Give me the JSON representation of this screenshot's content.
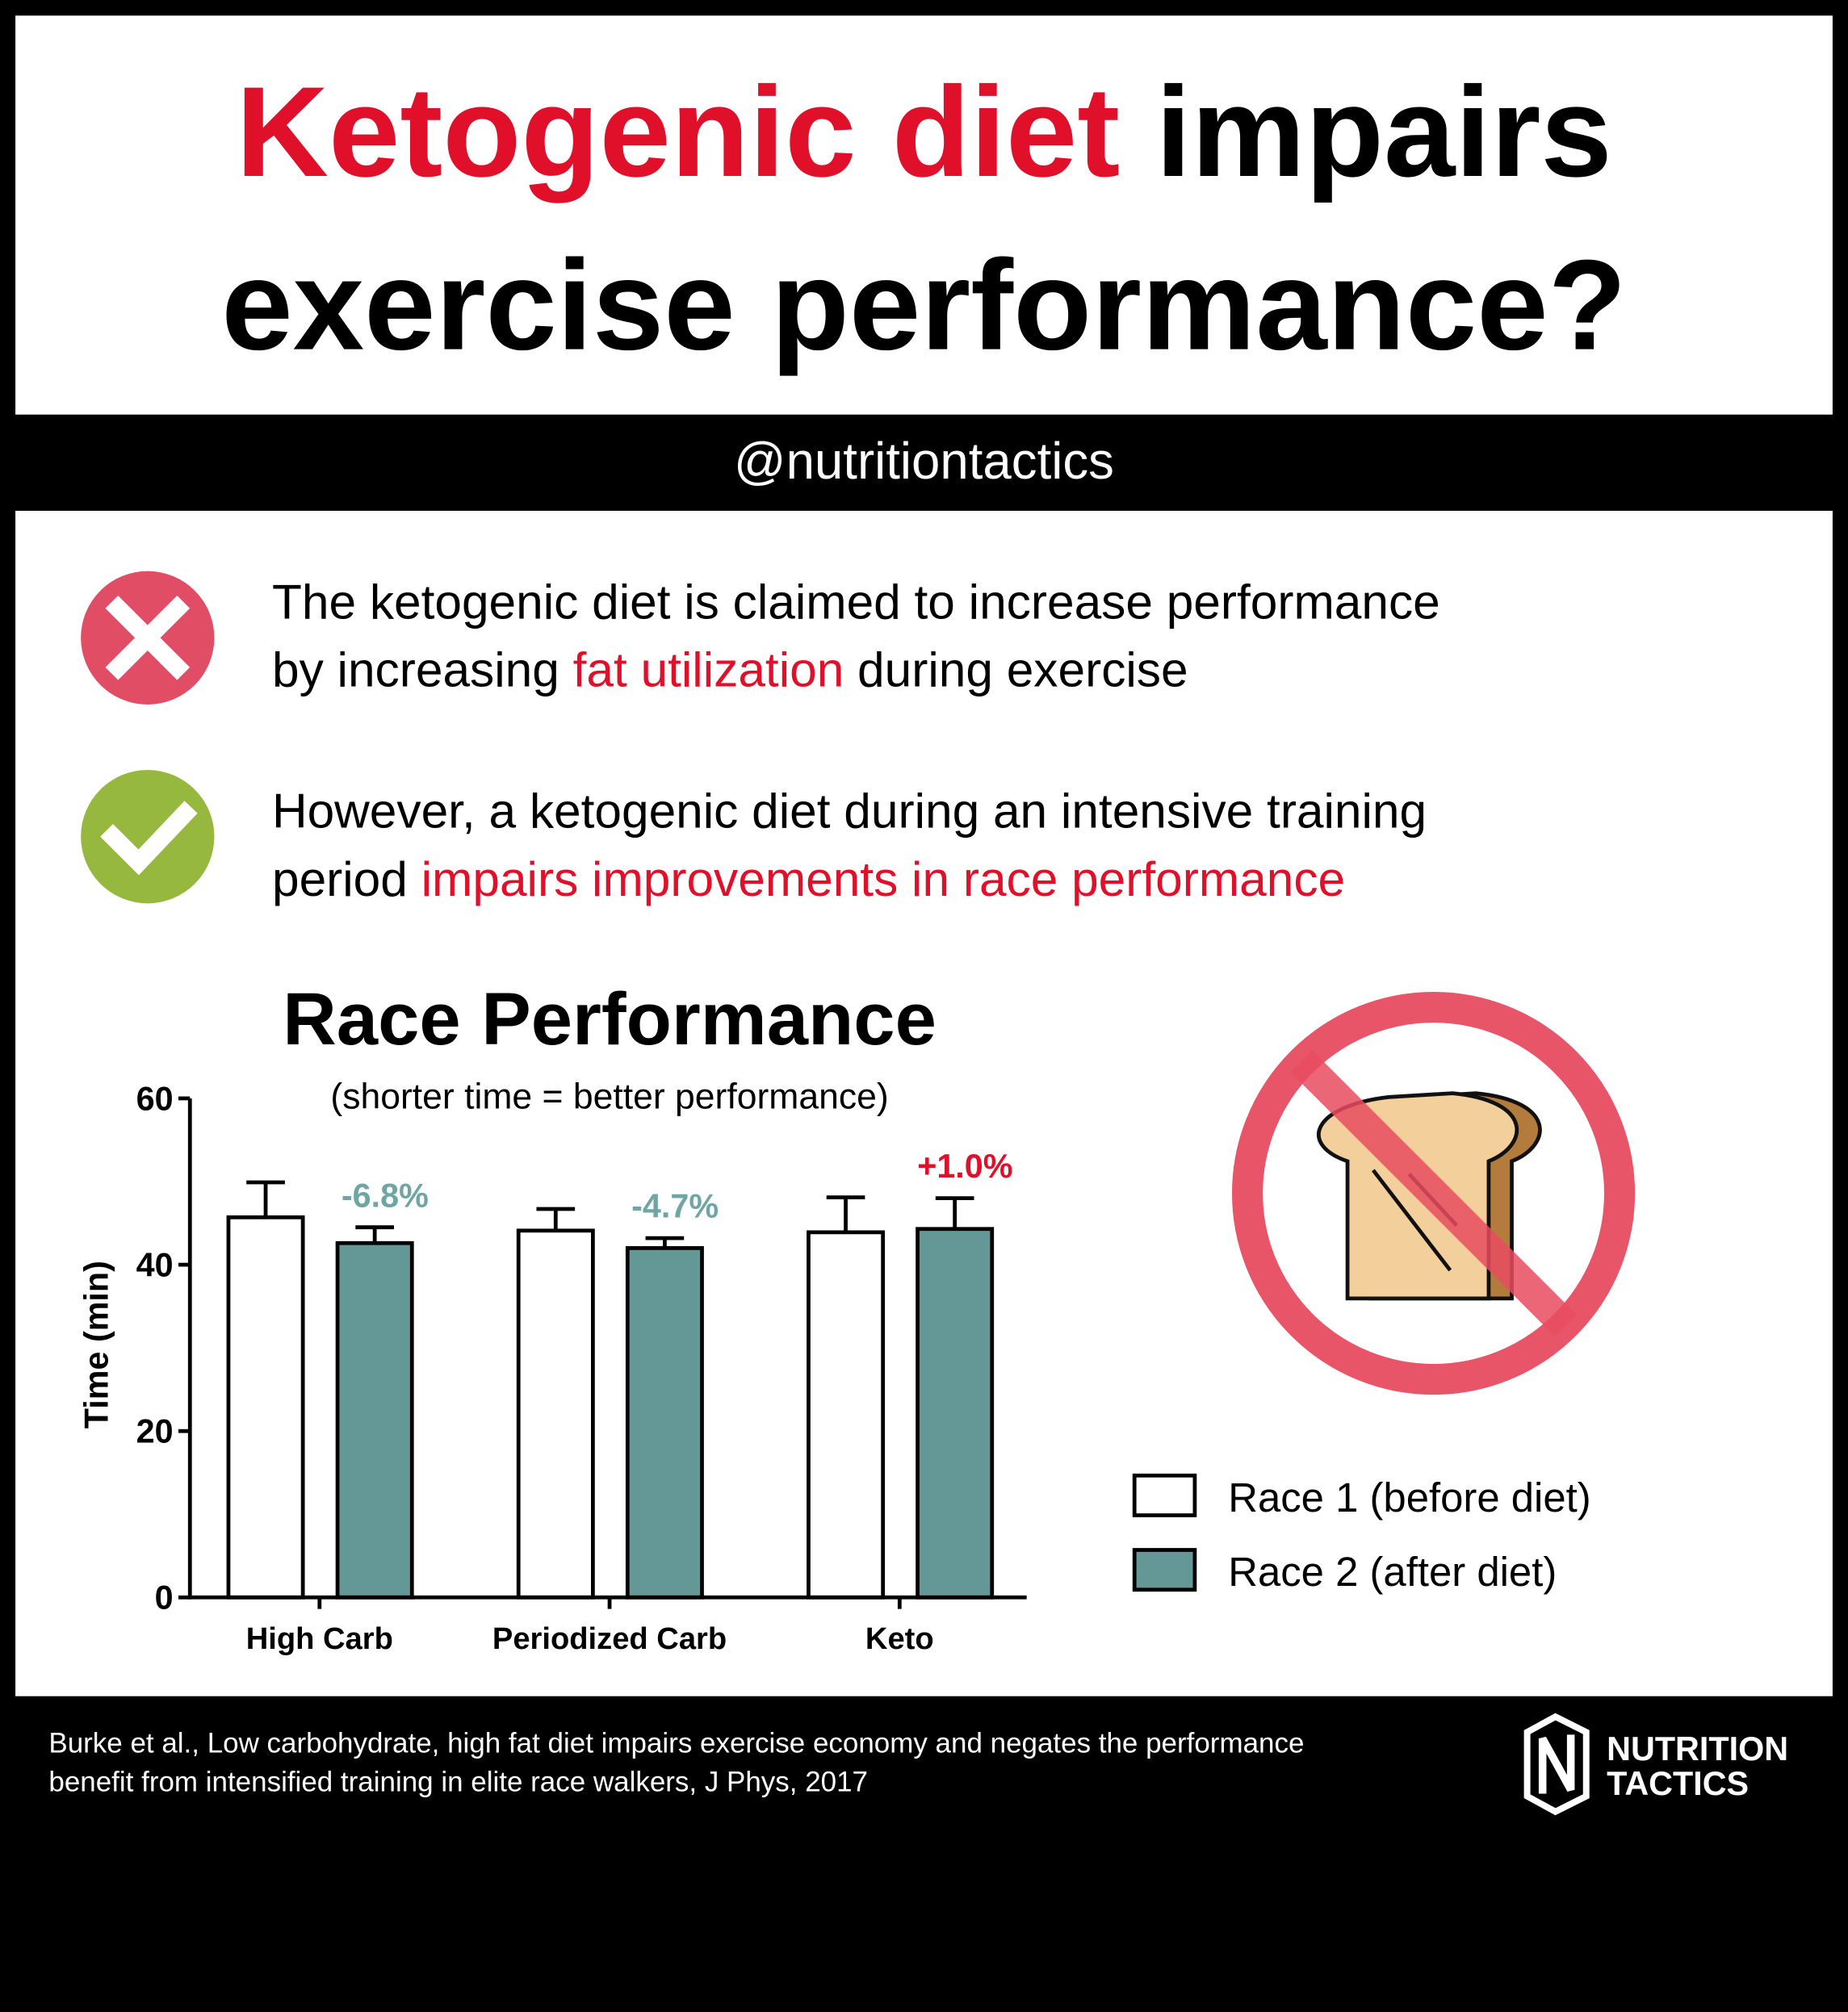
{
  "header": {
    "title_lines": [
      [
        {
          "text": "Ketogenic diet",
          "color": "#e0102a"
        },
        {
          "text": " impairs"
        }
      ],
      [
        {
          "text": "exercise performance?"
        }
      ]
    ],
    "handle": "@nutritiontactics"
  },
  "points": [
    {
      "lines": [
        [
          {
            "text": "The ketogenic diet is claimed to increase performance"
          }
        ],
        [
          {
            "text": "by increasing "
          },
          {
            "text": "fat utilization",
            "color": "#e0102a"
          },
          {
            "text": " during exercise"
          }
        ]
      ]
    },
    {
      "lines": [
        [
          {
            "text": "However, a ketogenic diet during an intensive training"
          }
        ],
        [
          {
            "text": "period "
          },
          {
            "text": "impairs improvements in race performance",
            "color": "#e0102a"
          }
        ]
      ]
    }
  ],
  "chart_data": {
    "type": "bar",
    "title": "Race Performance",
    "subtitle": "(shorter time = better performance)",
    "y_label": "Time (min)",
    "categories": [
      "High Carb",
      "Periodized Carb",
      "Keto"
    ],
    "series": [
      {
        "name": "Race 1 (before diet)",
        "color": "#ffffff",
        "values": [
          45.7,
          44.1,
          43.9
        ],
        "errors": [
          4.2,
          2.6,
          4.2
        ]
      },
      {
        "name": "Race 2 (after diet)",
        "color": "#649896",
        "values": [
          42.6,
          42.0,
          44.3
        ],
        "errors": [
          1.9,
          1.2,
          3.7
        ]
      }
    ],
    "annotations": [
      {
        "text": "-6.8%",
        "color": "#6fa6a4"
      },
      {
        "text": "-4.7%",
        "color": "#6fa6a4"
      },
      {
        "text": "+1.0%",
        "color": "#e0102a"
      }
    ],
    "ylim": [
      0,
      60
    ],
    "yticks": [
      0,
      20,
      40,
      60
    ]
  },
  "citation": [
    "Burke et al., Low carbohydrate, high fat diet impairs exercise economy and negates the performance",
    "benefit from intensified training in elite race walkers, J Phys, 2017"
  ],
  "logo": [
    "NUTRITION",
    "TACTICS"
  ]
}
